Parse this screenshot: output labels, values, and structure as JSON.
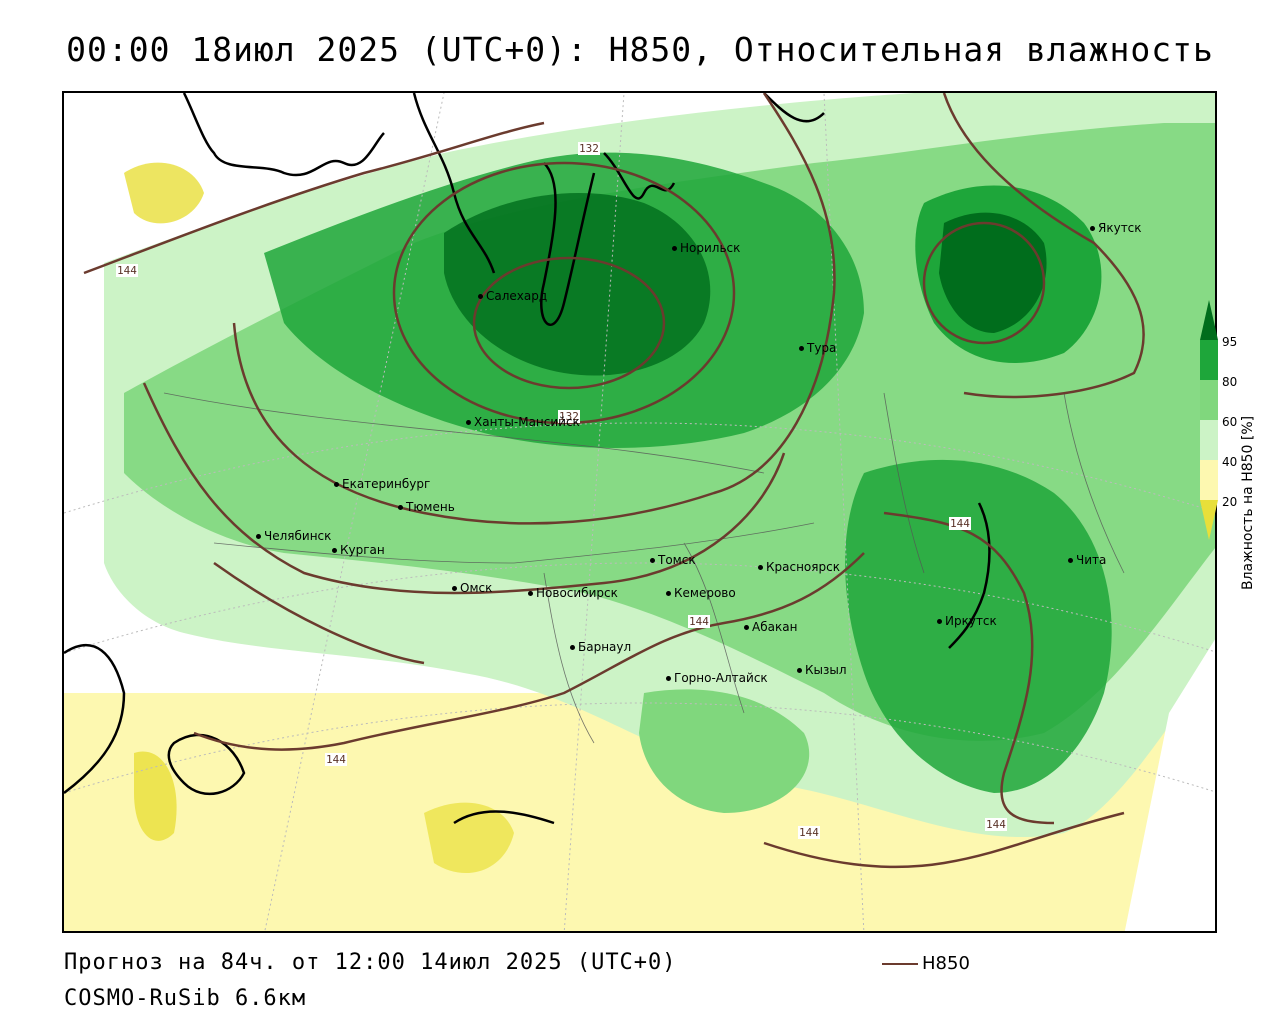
{
  "title": "00:00 18июл 2025 (UTC+0): H850, Относительная влажность",
  "footer": {
    "forecast": "Прогноз на 84ч. от 12:00 14июл 2025 (UTC+0)",
    "model": "COSMO-RuSib 6.6км"
  },
  "legend": {
    "line_label": "H850",
    "line_color": "#6b3b2e"
  },
  "colorbar": {
    "title": "Влажность на H850 [%]",
    "ticks": [
      "95",
      "80",
      "60",
      "40",
      "20"
    ],
    "colors": [
      "#006d1c",
      "#1ea63a",
      "#80d77d",
      "#ccf3c6",
      "#ffffff",
      "#fdf8b0",
      "#e8df3a"
    ]
  },
  "cities": [
    {
      "name": "Якутск"
    },
    {
      "name": "Норильск"
    },
    {
      "name": "Салехард"
    },
    {
      "name": "Тура"
    },
    {
      "name": "Ханты-Мансийск"
    },
    {
      "name": "Екатеринбург"
    },
    {
      "name": "Тюмень"
    },
    {
      "name": "Челябинск"
    },
    {
      "name": "Курган"
    },
    {
      "name": "Омск"
    },
    {
      "name": "Новосибирск"
    },
    {
      "name": "Томск"
    },
    {
      "name": "Кемерово"
    },
    {
      "name": "Красноярск"
    },
    {
      "name": "Барнаул"
    },
    {
      "name": "Абакан"
    },
    {
      "name": "Горно-Алтайск"
    },
    {
      "name": "Кызыл"
    },
    {
      "name": "Иркутск"
    },
    {
      "name": "Чита"
    }
  ],
  "contour_labels": [
    "132",
    "132",
    "144",
    "144",
    "144",
    "144",
    "144",
    "144"
  ]
}
